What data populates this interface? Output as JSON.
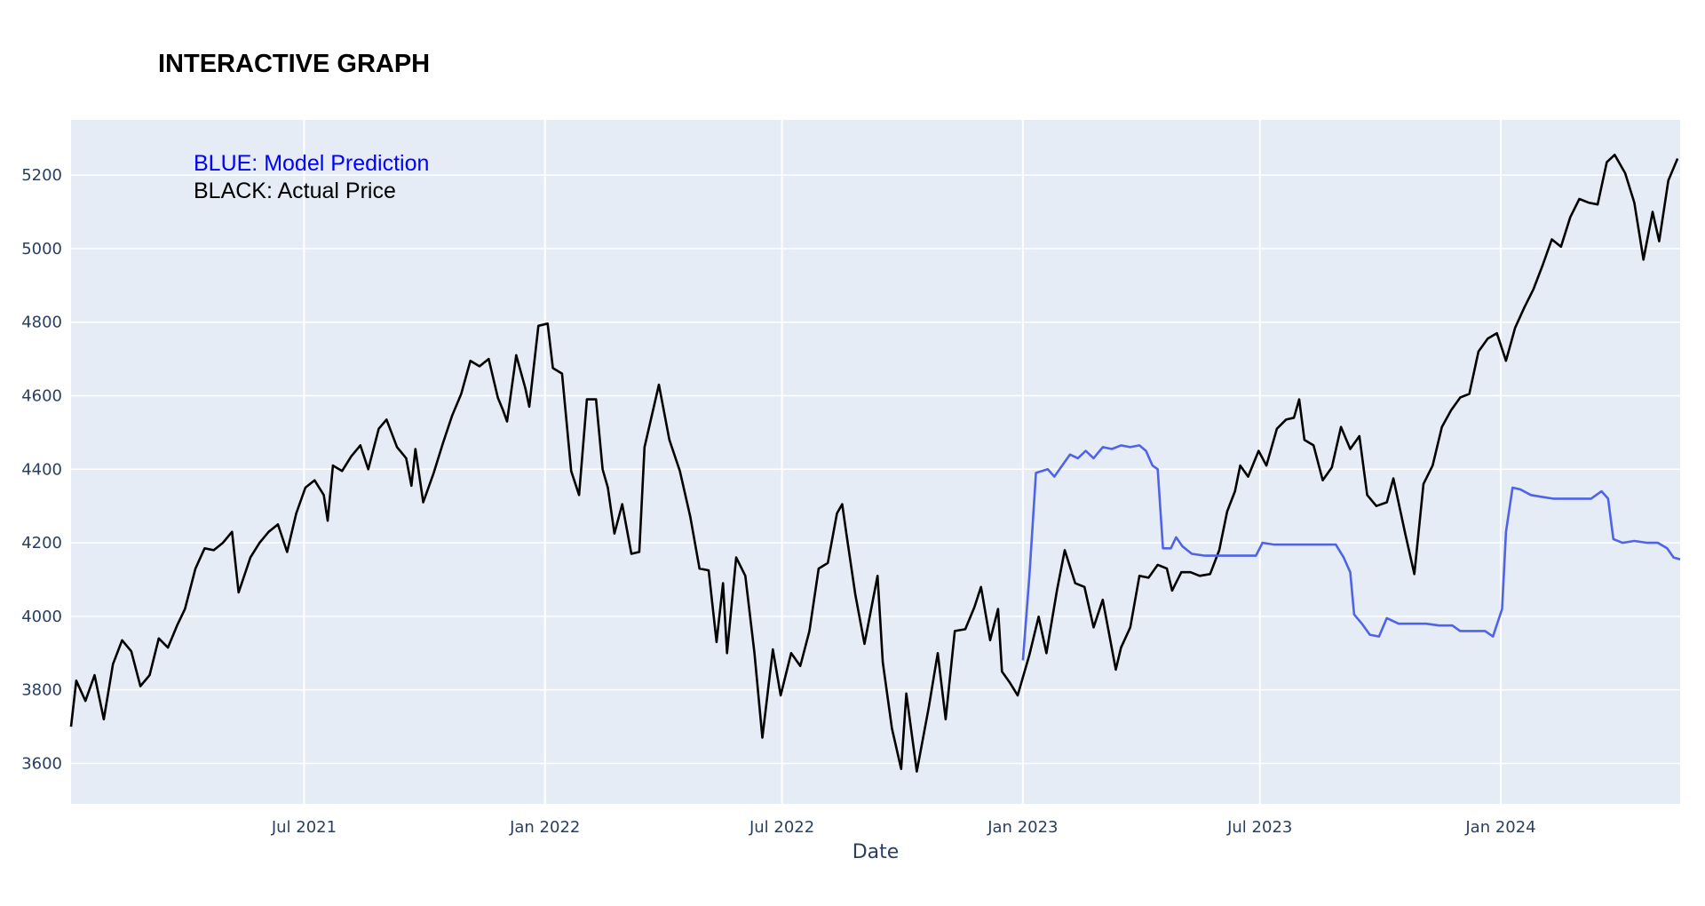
{
  "chart_data": {
    "type": "line",
    "title": "INTERACTIVE GRAPH",
    "xlabel": "Date",
    "ylabel": "",
    "xlim": [
      "2021-01-04",
      "2024-05-17"
    ],
    "ylim": [
      3490,
      5350
    ],
    "grid": true,
    "plot_background": "#e5ecf6",
    "x_ticks": [
      {
        "date": "2021-07-01",
        "label": "Jul 2021"
      },
      {
        "date": "2022-01-01",
        "label": "Jan 2022"
      },
      {
        "date": "2022-07-01",
        "label": "Jul 2022"
      },
      {
        "date": "2023-01-01",
        "label": "Jan 2023"
      },
      {
        "date": "2023-07-01",
        "label": "Jul 2023"
      },
      {
        "date": "2024-01-01",
        "label": "Jan 2024"
      }
    ],
    "y_ticks": [
      3600,
      3800,
      4000,
      4200,
      4400,
      4600,
      4800,
      5000,
      5200
    ],
    "annotations": [
      {
        "text": "BLUE: Model Prediction",
        "color": "#0000ff"
      },
      {
        "text": "BLACK: Actual Price",
        "color": "#000000"
      }
    ],
    "series": [
      {
        "color": "#000000",
        "points": [
          [
            "2021-01-04",
            3700
          ],
          [
            "2021-01-08",
            3825
          ],
          [
            "2021-01-15",
            3770
          ],
          [
            "2021-01-22",
            3840
          ],
          [
            "2021-01-29",
            3720
          ],
          [
            "2021-02-05",
            3870
          ],
          [
            "2021-02-12",
            3935
          ],
          [
            "2021-02-19",
            3905
          ],
          [
            "2021-02-26",
            3810
          ],
          [
            "2021-03-05",
            3840
          ],
          [
            "2021-03-12",
            3940
          ],
          [
            "2021-03-19",
            3915
          ],
          [
            "2021-03-26",
            3975
          ],
          [
            "2021-04-01",
            4020
          ],
          [
            "2021-04-09",
            4130
          ],
          [
            "2021-04-16",
            4185
          ],
          [
            "2021-04-23",
            4180
          ],
          [
            "2021-04-30",
            4200
          ],
          [
            "2021-05-07",
            4230
          ],
          [
            "2021-05-12",
            4065
          ],
          [
            "2021-05-21",
            4160
          ],
          [
            "2021-05-28",
            4200
          ],
          [
            "2021-06-04",
            4230
          ],
          [
            "2021-06-11",
            4250
          ],
          [
            "2021-06-18",
            4175
          ],
          [
            "2021-06-25",
            4280
          ],
          [
            "2021-07-02",
            4350
          ],
          [
            "2021-07-09",
            4370
          ],
          [
            "2021-07-16",
            4330
          ],
          [
            "2021-07-19",
            4260
          ],
          [
            "2021-07-23",
            4410
          ],
          [
            "2021-07-30",
            4395
          ],
          [
            "2021-08-06",
            4435
          ],
          [
            "2021-08-13",
            4465
          ],
          [
            "2021-08-19",
            4400
          ],
          [
            "2021-08-27",
            4510
          ],
          [
            "2021-09-02",
            4535
          ],
          [
            "2021-09-10",
            4460
          ],
          [
            "2021-09-17",
            4430
          ],
          [
            "2021-09-21",
            4355
          ],
          [
            "2021-09-24",
            4455
          ],
          [
            "2021-09-30",
            4310
          ],
          [
            "2021-10-08",
            4390
          ],
          [
            "2021-10-15",
            4470
          ],
          [
            "2021-10-22",
            4545
          ],
          [
            "2021-10-29",
            4605
          ],
          [
            "2021-11-05",
            4695
          ],
          [
            "2021-11-12",
            4680
          ],
          [
            "2021-11-19",
            4700
          ],
          [
            "2021-11-26",
            4595
          ],
          [
            "2021-11-30",
            4560
          ],
          [
            "2021-12-03",
            4530
          ],
          [
            "2021-12-10",
            4710
          ],
          [
            "2021-12-17",
            4620
          ],
          [
            "2021-12-20",
            4570
          ],
          [
            "2021-12-27",
            4790
          ],
          [
            "2022-01-03",
            4796
          ],
          [
            "2022-01-07",
            4675
          ],
          [
            "2022-01-14",
            4660
          ],
          [
            "2022-01-21",
            4395
          ],
          [
            "2022-01-27",
            4330
          ],
          [
            "2022-02-02",
            4590
          ],
          [
            "2022-02-09",
            4590
          ],
          [
            "2022-02-14",
            4400
          ],
          [
            "2022-02-18",
            4350
          ],
          [
            "2022-02-23",
            4225
          ],
          [
            "2022-03-01",
            4305
          ],
          [
            "2022-03-08",
            4170
          ],
          [
            "2022-03-14",
            4175
          ],
          [
            "2022-03-18",
            4460
          ],
          [
            "2022-03-29",
            4630
          ],
          [
            "2022-04-06",
            4480
          ],
          [
            "2022-04-14",
            4395
          ],
          [
            "2022-04-22",
            4270
          ],
          [
            "2022-04-29",
            4130
          ],
          [
            "2022-05-06",
            4125
          ],
          [
            "2022-05-12",
            3930
          ],
          [
            "2022-05-17",
            4090
          ],
          [
            "2022-05-20",
            3900
          ],
          [
            "2022-05-27",
            4160
          ],
          [
            "2022-06-03",
            4110
          ],
          [
            "2022-06-10",
            3900
          ],
          [
            "2022-06-16",
            3670
          ],
          [
            "2022-06-24",
            3910
          ],
          [
            "2022-06-30",
            3785
          ],
          [
            "2022-07-08",
            3900
          ],
          [
            "2022-07-15",
            3865
          ],
          [
            "2022-07-22",
            3960
          ],
          [
            "2022-07-29",
            4130
          ],
          [
            "2022-08-05",
            4145
          ],
          [
            "2022-08-12",
            4280
          ],
          [
            "2022-08-16",
            4305
          ],
          [
            "2022-08-19",
            4230
          ],
          [
            "2022-08-26",
            4060
          ],
          [
            "2022-09-02",
            3925
          ],
          [
            "2022-09-12",
            4110
          ],
          [
            "2022-09-16",
            3875
          ],
          [
            "2022-09-23",
            3695
          ],
          [
            "2022-09-30",
            3585
          ],
          [
            "2022-10-04",
            3790
          ],
          [
            "2022-10-12",
            3578
          ],
          [
            "2022-10-21",
            3750
          ],
          [
            "2022-10-28",
            3900
          ],
          [
            "2022-11-03",
            3720
          ],
          [
            "2022-11-10",
            3960
          ],
          [
            "2022-11-18",
            3965
          ],
          [
            "2022-11-25",
            4025
          ],
          [
            "2022-11-30",
            4080
          ],
          [
            "2022-12-07",
            3935
          ],
          [
            "2022-12-13",
            4020
          ],
          [
            "2022-12-16",
            3850
          ],
          [
            "2022-12-22",
            3820
          ],
          [
            "2022-12-28",
            3785
          ],
          [
            "2023-01-06",
            3895
          ],
          [
            "2023-01-13",
            3999
          ],
          [
            "2023-01-19",
            3900
          ],
          [
            "2023-01-27",
            4070
          ],
          [
            "2023-02-02",
            4180
          ],
          [
            "2023-02-10",
            4090
          ],
          [
            "2023-02-17",
            4080
          ],
          [
            "2023-02-24",
            3970
          ],
          [
            "2023-03-03",
            4045
          ],
          [
            "2023-03-13",
            3855
          ],
          [
            "2023-03-17",
            3915
          ],
          [
            "2023-03-24",
            3970
          ],
          [
            "2023-03-31",
            4110
          ],
          [
            "2023-04-07",
            4105
          ],
          [
            "2023-04-14",
            4140
          ],
          [
            "2023-04-21",
            4130
          ],
          [
            "2023-04-25",
            4070
          ],
          [
            "2023-05-02",
            4120
          ],
          [
            "2023-05-09",
            4120
          ],
          [
            "2023-05-16",
            4110
          ],
          [
            "2023-05-24",
            4115
          ],
          [
            "2023-05-31",
            4180
          ],
          [
            "2023-06-06",
            4285
          ],
          [
            "2023-06-12",
            4340
          ],
          [
            "2023-06-16",
            4410
          ],
          [
            "2023-06-22",
            4380
          ],
          [
            "2023-06-30",
            4450
          ],
          [
            "2023-07-06",
            4410
          ],
          [
            "2023-07-14",
            4510
          ],
          [
            "2023-07-21",
            4535
          ],
          [
            "2023-07-27",
            4540
          ],
          [
            "2023-07-31",
            4590
          ],
          [
            "2023-08-04",
            4480
          ],
          [
            "2023-08-11",
            4465
          ],
          [
            "2023-08-18",
            4370
          ],
          [
            "2023-08-25",
            4405
          ],
          [
            "2023-09-01",
            4515
          ],
          [
            "2023-09-08",
            4455
          ],
          [
            "2023-09-15",
            4490
          ],
          [
            "2023-09-21",
            4330
          ],
          [
            "2023-09-28",
            4300
          ],
          [
            "2023-10-06",
            4310
          ],
          [
            "2023-10-11",
            4375
          ],
          [
            "2023-10-20",
            4225
          ],
          [
            "2023-10-27",
            4115
          ],
          [
            "2023-11-03",
            4360
          ],
          [
            "2023-11-10",
            4410
          ],
          [
            "2023-11-17",
            4515
          ],
          [
            "2023-11-24",
            4560
          ],
          [
            "2023-12-01",
            4595
          ],
          [
            "2023-12-08",
            4605
          ],
          [
            "2023-12-15",
            4720
          ],
          [
            "2023-12-22",
            4755
          ],
          [
            "2023-12-29",
            4770
          ],
          [
            "2024-01-05",
            4695
          ],
          [
            "2024-01-12",
            4785
          ],
          [
            "2024-01-19",
            4840
          ],
          [
            "2024-01-26",
            4890
          ],
          [
            "2024-02-02",
            4955
          ],
          [
            "2024-02-09",
            5025
          ],
          [
            "2024-02-16",
            5005
          ],
          [
            "2024-02-23",
            5085
          ],
          [
            "2024-03-01",
            5135
          ],
          [
            "2024-03-08",
            5125
          ],
          [
            "2024-03-15",
            5120
          ],
          [
            "2024-03-22",
            5235
          ],
          [
            "2024-03-28",
            5255
          ],
          [
            "2024-04-05",
            5205
          ],
          [
            "2024-04-12",
            5125
          ],
          [
            "2024-04-19",
            4970
          ],
          [
            "2024-04-26",
            5100
          ],
          [
            "2024-05-01",
            5020
          ],
          [
            "2024-05-08",
            5185
          ],
          [
            "2024-05-15",
            5245
          ]
        ]
      },
      {
        "color": "#4f63e6",
        "points": [
          [
            "2023-01-01",
            3880
          ],
          [
            "2023-01-06",
            4110
          ],
          [
            "2023-01-11",
            4390
          ],
          [
            "2023-01-20",
            4400
          ],
          [
            "2023-01-25",
            4380
          ],
          [
            "2023-01-31",
            4410
          ],
          [
            "2023-02-06",
            4440
          ],
          [
            "2023-02-12",
            4430
          ],
          [
            "2023-02-18",
            4450
          ],
          [
            "2023-02-24",
            4430
          ],
          [
            "2023-03-03",
            4460
          ],
          [
            "2023-03-10",
            4455
          ],
          [
            "2023-03-17",
            4465
          ],
          [
            "2023-03-24",
            4460
          ],
          [
            "2023-03-31",
            4465
          ],
          [
            "2023-04-05",
            4450
          ],
          [
            "2023-04-10",
            4410
          ],
          [
            "2023-04-14",
            4400
          ],
          [
            "2023-04-18",
            4185
          ],
          [
            "2023-04-24",
            4185
          ],
          [
            "2023-04-28",
            4215
          ],
          [
            "2023-05-03",
            4190
          ],
          [
            "2023-05-10",
            4170
          ],
          [
            "2023-05-20",
            4165
          ],
          [
            "2023-06-05",
            4165
          ],
          [
            "2023-06-20",
            4165
          ],
          [
            "2023-06-28",
            4165
          ],
          [
            "2023-07-03",
            4200
          ],
          [
            "2023-07-12",
            4195
          ],
          [
            "2023-07-22",
            4195
          ],
          [
            "2023-08-01",
            4195
          ],
          [
            "2023-08-11",
            4195
          ],
          [
            "2023-08-21",
            4195
          ],
          [
            "2023-08-28",
            4195
          ],
          [
            "2023-09-03",
            4160
          ],
          [
            "2023-09-08",
            4120
          ],
          [
            "2023-09-11",
            4005
          ],
          [
            "2023-09-17",
            3980
          ],
          [
            "2023-09-23",
            3950
          ],
          [
            "2023-09-30",
            3945
          ],
          [
            "2023-10-06",
            3995
          ],
          [
            "2023-10-15",
            3980
          ],
          [
            "2023-10-25",
            3980
          ],
          [
            "2023-11-05",
            3980
          ],
          [
            "2023-11-15",
            3975
          ],
          [
            "2023-11-25",
            3975
          ],
          [
            "2023-12-01",
            3960
          ],
          [
            "2023-12-10",
            3960
          ],
          [
            "2023-12-20",
            3960
          ],
          [
            "2023-12-26",
            3945
          ],
          [
            "2024-01-02",
            4020
          ],
          [
            "2024-01-05",
            4230
          ],
          [
            "2024-01-10",
            4350
          ],
          [
            "2024-01-16",
            4345
          ],
          [
            "2024-01-24",
            4330
          ],
          [
            "2024-02-01",
            4325
          ],
          [
            "2024-02-10",
            4320
          ],
          [
            "2024-02-20",
            4320
          ],
          [
            "2024-03-01",
            4320
          ],
          [
            "2024-03-10",
            4320
          ],
          [
            "2024-03-18",
            4340
          ],
          [
            "2024-03-23",
            4320
          ],
          [
            "2024-03-27",
            4210
          ],
          [
            "2024-04-03",
            4200
          ],
          [
            "2024-04-12",
            4205
          ],
          [
            "2024-04-22",
            4200
          ],
          [
            "2024-04-30",
            4200
          ],
          [
            "2024-05-07",
            4185
          ],
          [
            "2024-05-12",
            4160
          ],
          [
            "2024-05-17",
            4155
          ]
        ]
      }
    ]
  }
}
